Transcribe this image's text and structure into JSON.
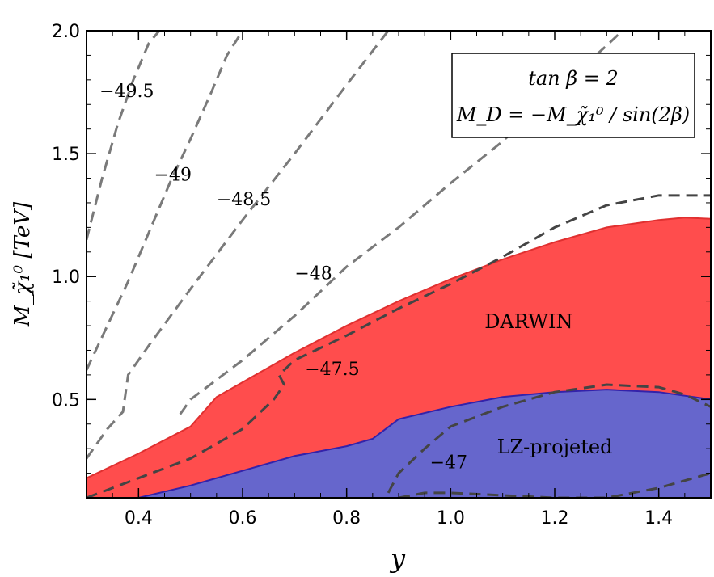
{
  "chart_data": {
    "type": "area",
    "xlabel": "y",
    "ylabel": "M_χ̃₁⁰ [TeV]",
    "xlim": [
      0.3,
      1.5
    ],
    "ylim": [
      0.1,
      2.0
    ],
    "x_ticks": [
      "0.4",
      "0.6",
      "0.8",
      "1.0",
      "1.2",
      "1.4"
    ],
    "x_tick_values": [
      0.4,
      0.6,
      0.8,
      1.0,
      1.2,
      1.4
    ],
    "y_ticks": [
      "0.5",
      "1.0",
      "1.5",
      "2.0"
    ],
    "y_tick_values": [
      0.5,
      1.0,
      1.5,
      2.0
    ],
    "legend_box": {
      "line1": "tan β = 2",
      "line2": "M_D = −M_χ̃₁⁰ / sin(2β)",
      "placement": "top-right"
    },
    "series": [
      {
        "name": "DARWIN",
        "color": "#ff4d4d",
        "edge_color": "#e03030",
        "x": [
          0.3,
          0.4,
          0.5,
          0.55,
          0.6,
          0.7,
          0.8,
          0.9,
          1.0,
          1.1,
          1.2,
          1.3,
          1.4,
          1.45,
          1.5
        ],
        "values": [
          0.18,
          0.28,
          0.39,
          0.51,
          0.57,
          0.69,
          0.8,
          0.9,
          0.99,
          1.07,
          1.14,
          1.2,
          1.23,
          1.24,
          1.235
        ]
      },
      {
        "name": "LZ-projeted",
        "color": "#6666cc",
        "edge_color": "#3322aa",
        "x": [
          0.4,
          0.5,
          0.6,
          0.7,
          0.8,
          0.85,
          0.9,
          1.0,
          1.1,
          1.2,
          1.3,
          1.4,
          1.5
        ],
        "values": [
          0.1,
          0.15,
          0.21,
          0.27,
          0.31,
          0.34,
          0.42,
          0.47,
          0.51,
          0.53,
          0.54,
          0.53,
          0.5
        ]
      }
    ],
    "contours": [
      {
        "label": "−49.5",
        "x": [
          0.3,
          0.33,
          0.36,
          0.39,
          0.42,
          0.44
        ],
        "values": [
          1.15,
          1.4,
          1.62,
          1.8,
          1.95,
          2.0
        ]
      },
      {
        "label": "−49",
        "x": [
          0.3,
          0.34,
          0.38,
          0.42,
          0.46,
          0.5,
          0.54,
          0.57,
          0.6
        ],
        "values": [
          0.62,
          0.8,
          0.98,
          1.18,
          1.38,
          1.56,
          1.75,
          1.9,
          2.0
        ]
      },
      {
        "label": "−48.5",
        "x": [
          0.3,
          0.34,
          0.37,
          0.38,
          0.42,
          0.5,
          0.6,
          0.7,
          0.8,
          0.88
        ],
        "values": [
          0.26,
          0.38,
          0.45,
          0.6,
          0.72,
          0.95,
          1.23,
          1.5,
          1.78,
          2.0
        ]
      },
      {
        "label": "−48",
        "x": [
          0.48,
          0.5,
          0.55,
          0.6,
          0.7,
          0.8,
          0.9,
          1.0,
          1.1,
          1.2,
          1.3,
          1.33
        ],
        "values": [
          0.44,
          0.5,
          0.58,
          0.66,
          0.84,
          1.04,
          1.2,
          1.38,
          1.55,
          1.75,
          1.94,
          2.0
        ]
      },
      {
        "label": "−47.5",
        "x": [
          0.3,
          0.4,
          0.5,
          0.6,
          0.66,
          0.68,
          0.67,
          0.7,
          0.8,
          0.9,
          1.0,
          1.1,
          1.2,
          1.3,
          1.4,
          1.5
        ],
        "values": [
          0.1,
          0.18,
          0.26,
          0.38,
          0.5,
          0.56,
          0.6,
          0.66,
          0.76,
          0.87,
          0.97,
          1.08,
          1.2,
          1.29,
          1.33,
          1.33
        ]
      },
      {
        "label": "−47",
        "x": [
          0.88,
          0.9,
          0.95,
          1.0,
          1.05,
          1.1,
          1.2,
          1.3,
          1.4,
          1.45,
          1.5
        ],
        "values": [
          0.12,
          0.2,
          0.3,
          0.39,
          0.43,
          0.47,
          0.53,
          0.56,
          0.55,
          0.52,
          0.47
        ]
      },
      {
        "label": "",
        "x": [
          0.9,
          0.95,
          1.0,
          1.1,
          1.2,
          1.3,
          1.4,
          1.45,
          1.5
        ],
        "values": [
          0.1,
          0.12,
          0.12,
          0.11,
          0.1,
          0.1,
          0.14,
          0.17,
          0.2
        ]
      }
    ],
    "contour_labels": [
      {
        "text": "−49.5",
        "x": 0.325,
        "y": 1.73
      },
      {
        "text": "−49",
        "x": 0.43,
        "y": 1.39
      },
      {
        "text": "−48.5",
        "x": 0.55,
        "y": 1.29
      },
      {
        "text": "−48",
        "x": 0.7,
        "y": 0.99
      },
      {
        "text": "−47.5",
        "x": 0.72,
        "y": 0.6
      },
      {
        "text": "−47",
        "x": 0.96,
        "y": 0.22
      }
    ],
    "region_labels": [
      {
        "text": "DARWIN",
        "x": 1.15,
        "y": 0.79
      },
      {
        "text": "LZ-projeted",
        "x": 1.2,
        "y": 0.28
      }
    ],
    "grid": false
  }
}
